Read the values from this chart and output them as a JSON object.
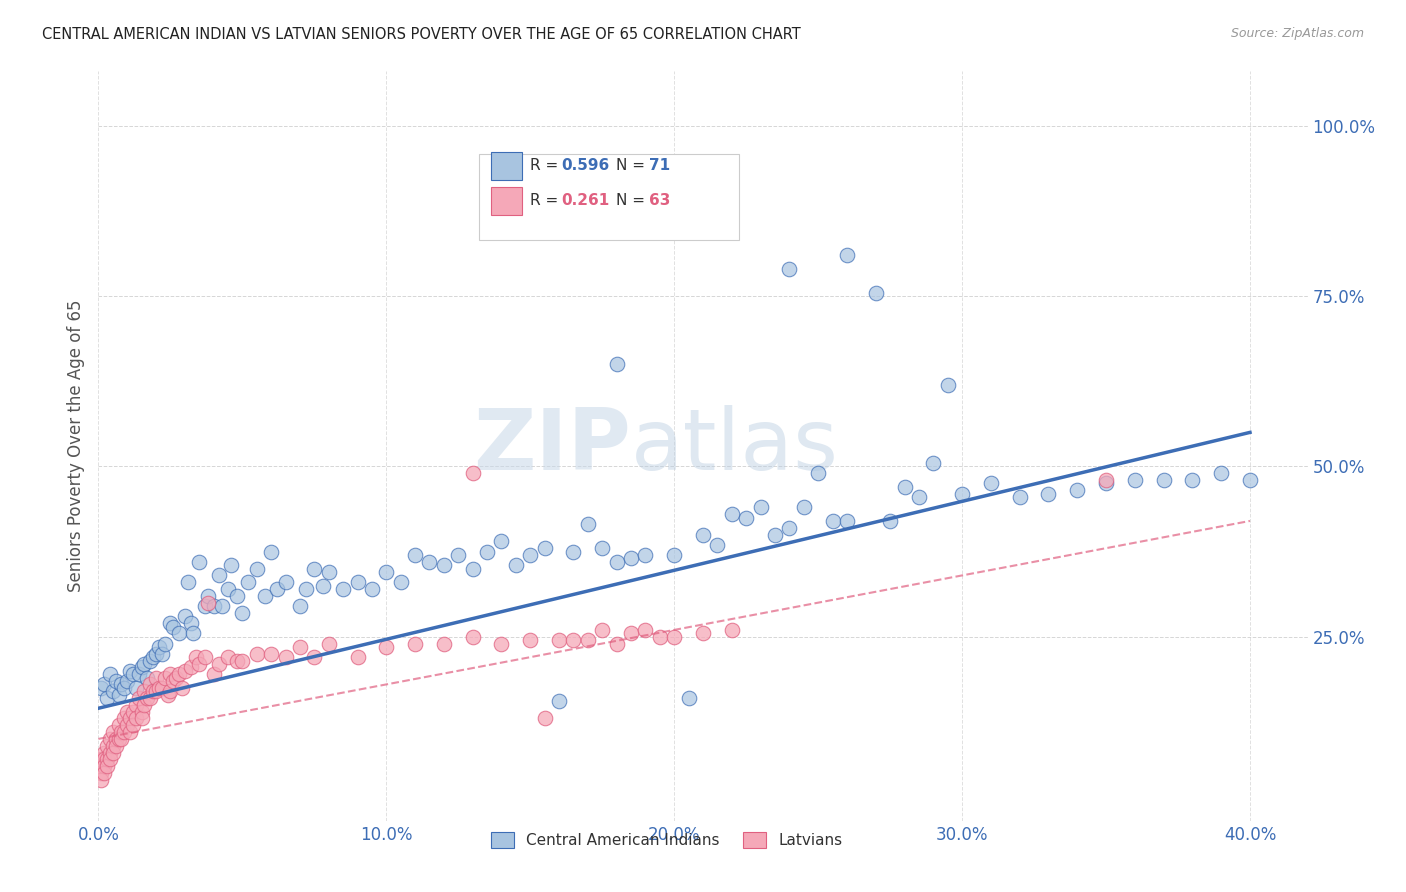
{
  "title": "CENTRAL AMERICAN INDIAN VS LATVIAN SENIORS POVERTY OVER THE AGE OF 65 CORRELATION CHART",
  "source": "Source: ZipAtlas.com",
  "ylabel": "Seniors Poverty Over the Age of 65",
  "xlim": [
    0.0,
    0.42
  ],
  "ylim": [
    -0.02,
    1.08
  ],
  "xtick_labels": [
    "0.0%",
    "",
    "",
    "",
    "10.0%",
    "",
    "",
    "",
    "",
    "20.0%",
    "",
    "",
    "",
    "",
    "30.0%",
    "",
    "",
    "",
    "",
    "40.0%"
  ],
  "xtick_major_labels": [
    "0.0%",
    "10.0%",
    "20.0%",
    "30.0%",
    "40.0%"
  ],
  "xtick_major_vals": [
    0.0,
    0.1,
    0.2,
    0.3,
    0.4
  ],
  "ytick_labels": [
    "25.0%",
    "50.0%",
    "75.0%",
    "100.0%"
  ],
  "ytick_vals": [
    0.25,
    0.5,
    0.75,
    1.0
  ],
  "color_blue": "#A8C4E0",
  "color_pink": "#F5A8B8",
  "color_blue_dark": "#3D6DB5",
  "color_pink_dark": "#E06080",
  "trendline1_x": [
    0.0,
    0.4
  ],
  "trendline1_y": [
    0.145,
    0.55
  ],
  "trendline2_x": [
    0.0,
    0.4
  ],
  "trendline2_y": [
    0.1,
    0.42
  ],
  "blue_points": [
    [
      0.001,
      0.175
    ],
    [
      0.002,
      0.18
    ],
    [
      0.003,
      0.16
    ],
    [
      0.004,
      0.195
    ],
    [
      0.005,
      0.17
    ],
    [
      0.006,
      0.185
    ],
    [
      0.007,
      0.165
    ],
    [
      0.008,
      0.18
    ],
    [
      0.009,
      0.175
    ],
    [
      0.01,
      0.185
    ],
    [
      0.011,
      0.2
    ],
    [
      0.012,
      0.195
    ],
    [
      0.013,
      0.175
    ],
    [
      0.014,
      0.195
    ],
    [
      0.015,
      0.205
    ],
    [
      0.016,
      0.21
    ],
    [
      0.017,
      0.19
    ],
    [
      0.018,
      0.215
    ],
    [
      0.019,
      0.22
    ],
    [
      0.02,
      0.225
    ],
    [
      0.021,
      0.235
    ],
    [
      0.022,
      0.225
    ],
    [
      0.023,
      0.24
    ],
    [
      0.025,
      0.27
    ],
    [
      0.026,
      0.265
    ],
    [
      0.028,
      0.255
    ],
    [
      0.03,
      0.28
    ],
    [
      0.031,
      0.33
    ],
    [
      0.032,
      0.27
    ],
    [
      0.033,
      0.255
    ],
    [
      0.035,
      0.36
    ],
    [
      0.037,
      0.295
    ],
    [
      0.038,
      0.31
    ],
    [
      0.04,
      0.295
    ],
    [
      0.042,
      0.34
    ],
    [
      0.043,
      0.295
    ],
    [
      0.045,
      0.32
    ],
    [
      0.046,
      0.355
    ],
    [
      0.048,
      0.31
    ],
    [
      0.05,
      0.285
    ],
    [
      0.052,
      0.33
    ],
    [
      0.055,
      0.35
    ],
    [
      0.058,
      0.31
    ],
    [
      0.06,
      0.375
    ],
    [
      0.062,
      0.32
    ],
    [
      0.065,
      0.33
    ],
    [
      0.07,
      0.295
    ],
    [
      0.072,
      0.32
    ],
    [
      0.075,
      0.35
    ],
    [
      0.078,
      0.325
    ],
    [
      0.08,
      0.345
    ],
    [
      0.085,
      0.32
    ],
    [
      0.09,
      0.33
    ],
    [
      0.095,
      0.32
    ],
    [
      0.1,
      0.345
    ],
    [
      0.105,
      0.33
    ],
    [
      0.11,
      0.37
    ],
    [
      0.115,
      0.36
    ],
    [
      0.12,
      0.355
    ],
    [
      0.125,
      0.37
    ],
    [
      0.13,
      0.35
    ],
    [
      0.135,
      0.375
    ],
    [
      0.14,
      0.39
    ],
    [
      0.145,
      0.355
    ],
    [
      0.15,
      0.37
    ],
    [
      0.155,
      0.38
    ],
    [
      0.16,
      0.155
    ],
    [
      0.165,
      0.375
    ],
    [
      0.17,
      0.415
    ],
    [
      0.175,
      0.38
    ],
    [
      0.18,
      0.36
    ],
    [
      0.185,
      0.365
    ],
    [
      0.19,
      0.37
    ],
    [
      0.2,
      0.37
    ],
    [
      0.205,
      0.16
    ],
    [
      0.21,
      0.4
    ],
    [
      0.215,
      0.385
    ],
    [
      0.22,
      0.43
    ],
    [
      0.225,
      0.425
    ],
    [
      0.23,
      0.44
    ],
    [
      0.235,
      0.4
    ],
    [
      0.24,
      0.41
    ],
    [
      0.245,
      0.44
    ],
    [
      0.25,
      0.49
    ],
    [
      0.255,
      0.42
    ],
    [
      0.26,
      0.42
    ],
    [
      0.27,
      0.755
    ],
    [
      0.275,
      0.42
    ],
    [
      0.28,
      0.47
    ],
    [
      0.285,
      0.455
    ],
    [
      0.29,
      0.505
    ],
    [
      0.295,
      0.62
    ],
    [
      0.3,
      0.46
    ],
    [
      0.31,
      0.475
    ],
    [
      0.32,
      0.455
    ],
    [
      0.33,
      0.46
    ],
    [
      0.34,
      0.465
    ],
    [
      0.35,
      0.475
    ],
    [
      0.36,
      0.48
    ],
    [
      0.37,
      0.48
    ],
    [
      0.38,
      0.48
    ],
    [
      0.39,
      0.49
    ],
    [
      0.4,
      0.48
    ],
    [
      0.18,
      0.65
    ],
    [
      0.24,
      0.79
    ],
    [
      0.26,
      0.81
    ]
  ],
  "pink_points": [
    [
      0.001,
      0.07
    ],
    [
      0.001,
      0.06
    ],
    [
      0.001,
      0.05
    ],
    [
      0.001,
      0.04
    ],
    [
      0.002,
      0.08
    ],
    [
      0.002,
      0.07
    ],
    [
      0.002,
      0.06
    ],
    [
      0.002,
      0.05
    ],
    [
      0.003,
      0.09
    ],
    [
      0.003,
      0.07
    ],
    [
      0.003,
      0.06
    ],
    [
      0.004,
      0.1
    ],
    [
      0.004,
      0.08
    ],
    [
      0.004,
      0.07
    ],
    [
      0.005,
      0.11
    ],
    [
      0.005,
      0.09
    ],
    [
      0.005,
      0.08
    ],
    [
      0.006,
      0.1
    ],
    [
      0.006,
      0.09
    ],
    [
      0.007,
      0.12
    ],
    [
      0.007,
      0.1
    ],
    [
      0.008,
      0.11
    ],
    [
      0.008,
      0.1
    ],
    [
      0.009,
      0.13
    ],
    [
      0.009,
      0.11
    ],
    [
      0.01,
      0.14
    ],
    [
      0.01,
      0.12
    ],
    [
      0.011,
      0.13
    ],
    [
      0.011,
      0.11
    ],
    [
      0.012,
      0.14
    ],
    [
      0.012,
      0.12
    ],
    [
      0.013,
      0.15
    ],
    [
      0.013,
      0.13
    ],
    [
      0.014,
      0.16
    ],
    [
      0.015,
      0.14
    ],
    [
      0.015,
      0.13
    ],
    [
      0.016,
      0.17
    ],
    [
      0.016,
      0.15
    ],
    [
      0.017,
      0.16
    ],
    [
      0.018,
      0.18
    ],
    [
      0.018,
      0.16
    ],
    [
      0.019,
      0.17
    ],
    [
      0.02,
      0.19
    ],
    [
      0.02,
      0.17
    ],
    [
      0.021,
      0.175
    ],
    [
      0.022,
      0.175
    ],
    [
      0.023,
      0.19
    ],
    [
      0.024,
      0.165
    ],
    [
      0.025,
      0.195
    ],
    [
      0.025,
      0.17
    ],
    [
      0.026,
      0.185
    ],
    [
      0.027,
      0.19
    ],
    [
      0.028,
      0.195
    ],
    [
      0.029,
      0.175
    ],
    [
      0.03,
      0.2
    ],
    [
      0.032,
      0.205
    ],
    [
      0.034,
      0.22
    ],
    [
      0.035,
      0.21
    ],
    [
      0.037,
      0.22
    ],
    [
      0.038,
      0.3
    ],
    [
      0.04,
      0.195
    ],
    [
      0.042,
      0.21
    ],
    [
      0.045,
      0.22
    ],
    [
      0.048,
      0.215
    ],
    [
      0.05,
      0.215
    ],
    [
      0.055,
      0.225
    ],
    [
      0.06,
      0.225
    ],
    [
      0.065,
      0.22
    ],
    [
      0.07,
      0.235
    ],
    [
      0.075,
      0.22
    ],
    [
      0.08,
      0.24
    ],
    [
      0.09,
      0.22
    ],
    [
      0.1,
      0.235
    ],
    [
      0.11,
      0.24
    ],
    [
      0.12,
      0.24
    ],
    [
      0.13,
      0.25
    ],
    [
      0.14,
      0.24
    ],
    [
      0.15,
      0.245
    ],
    [
      0.155,
      0.13
    ],
    [
      0.16,
      0.245
    ],
    [
      0.165,
      0.245
    ],
    [
      0.17,
      0.245
    ],
    [
      0.175,
      0.26
    ],
    [
      0.18,
      0.24
    ],
    [
      0.185,
      0.255
    ],
    [
      0.19,
      0.26
    ],
    [
      0.195,
      0.25
    ],
    [
      0.2,
      0.25
    ],
    [
      0.21,
      0.255
    ],
    [
      0.22,
      0.26
    ],
    [
      0.35,
      0.48
    ],
    [
      0.13,
      0.49
    ]
  ],
  "background_color": "#FFFFFF",
  "grid_color": "#CCCCCC",
  "watermark_zip": "ZIP",
  "watermark_atlas": "atlas",
  "label_blue": "Central American Indians",
  "label_pink": "Latvians"
}
